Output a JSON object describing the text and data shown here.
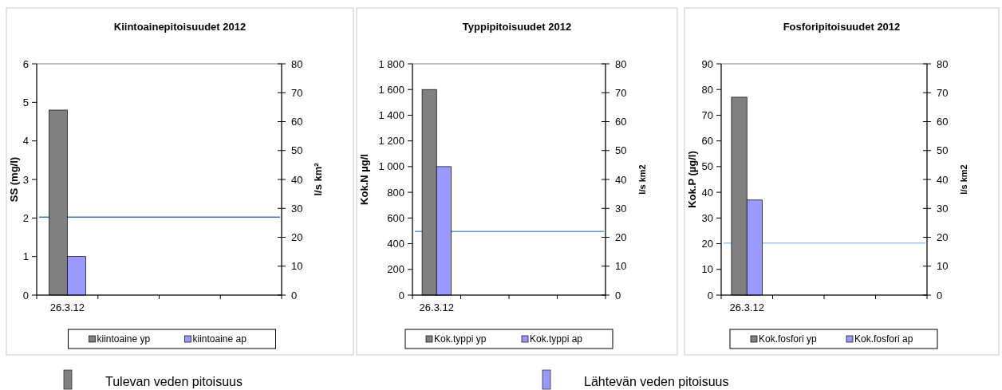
{
  "chart_data": [
    {
      "type": "bar",
      "title": "Kiintoainepitoisuudet 2012",
      "ylabel": "SS (mg/l)",
      "y2label": "l/s km²",
      "categories": [
        "26.3.12",
        null,
        null,
        null
      ],
      "series": [
        {
          "name": "kiintoaine yp",
          "color": "#808080",
          "values": [
            4.8,
            null,
            null,
            null
          ]
        },
        {
          "name": "kiintoaine ap",
          "color": "#9999ff",
          "values": [
            1,
            null,
            null,
            null
          ]
        }
      ],
      "ylim": [
        0,
        6
      ],
      "yticks": [
        0,
        1,
        2,
        3,
        4,
        5,
        6
      ],
      "y2lim": [
        0,
        80
      ],
      "y2ticks": [
        0,
        10,
        20,
        30,
        40,
        50,
        60,
        70,
        80
      ],
      "ref_lines": [
        {
          "axis": "y2",
          "value": 27,
          "color": "#4472c4"
        }
      ],
      "legend": "bottom"
    },
    {
      "type": "bar",
      "title": "Typpipitoisuudet 2012",
      "ylabel": "Kok.N µg/l",
      "y2label": "l/s km2",
      "categories": [
        "26.3.12",
        null,
        null,
        null
      ],
      "series": [
        {
          "name": "Kok.typpi yp",
          "color": "#808080",
          "values": [
            1600,
            null,
            null,
            null
          ]
        },
        {
          "name": "Kok.typpi ap",
          "color": "#9999ff",
          "values": [
            1000,
            null,
            null,
            null
          ]
        }
      ],
      "ylim": [
        0,
        1800
      ],
      "yticks": [
        0,
        200,
        400,
        600,
        800,
        {
          "value": 1000,
          "label": "1 000"
        },
        {
          "value": 1200,
          "label": "1 200"
        },
        {
          "value": 1400,
          "label": "1 400"
        },
        {
          "value": 1600,
          "label": "1 600"
        },
        {
          "value": 1800,
          "label": "1 800"
        }
      ],
      "y2lim": [
        0,
        80
      ],
      "y2ticks": [
        0,
        10,
        20,
        30,
        40,
        50,
        60,
        70,
        80
      ],
      "ref_lines": [
        {
          "axis": "y2",
          "value": 22,
          "color": "#5b9bd5"
        }
      ],
      "legend": "bottom"
    },
    {
      "type": "bar",
      "title": "Fosforipitoisuudet 2012",
      "ylabel": "Kok.P (µg/l)",
      "y2label": "l/s km2",
      "categories": [
        "26.3.12",
        null,
        null,
        null
      ],
      "series": [
        {
          "name": "Kok.fosfori yp",
          "color": "#808080",
          "values": [
            77,
            null,
            null,
            null
          ]
        },
        {
          "name": "Kok.fosfori ap",
          "color": "#9999ff",
          "values": [
            37,
            null,
            null,
            null
          ]
        }
      ],
      "ylim": [
        0,
        90
      ],
      "yticks": [
        0,
        10,
        20,
        30,
        40,
        50,
        60,
        70,
        80,
        90
      ],
      "y2lim": [
        0,
        80
      ],
      "y2ticks": [
        0,
        10,
        20,
        30,
        40,
        50,
        60,
        70,
        80
      ],
      "ref_lines": [
        {
          "axis": "y2",
          "value": 18,
          "color": "#9dc3e6"
        }
      ],
      "legend": "bottom"
    },
    {
      "type": "other",
      "annotations": [
        "Tulevan veden pitoisuus",
        "Lähtevän veden pitoisuus"
      ],
      "colors": [
        "#808080",
        "#9999ff"
      ]
    }
  ]
}
